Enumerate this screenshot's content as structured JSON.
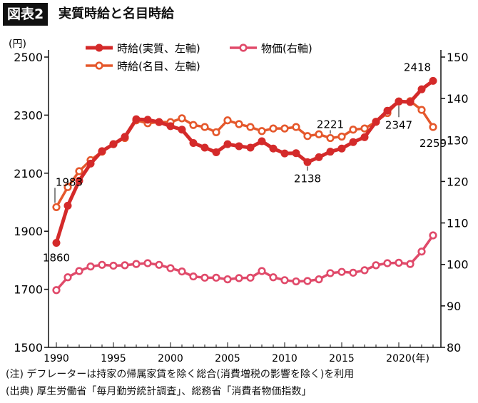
{
  "title": {
    "label": "図表2",
    "text": "実質時給と名目時給"
  },
  "chart_data": {
    "type": "line",
    "title": "実質時給と名目時給",
    "x": [
      1990,
      1991,
      1992,
      1993,
      1994,
      1995,
      1996,
      1997,
      1998,
      1999,
      2000,
      2001,
      2002,
      2003,
      2004,
      2005,
      2006,
      2007,
      2008,
      2009,
      2010,
      2011,
      2012,
      2013,
      2014,
      2015,
      2016,
      2017,
      2018,
      2019,
      2020,
      2021,
      2022,
      2023
    ],
    "x_ticks": [
      "1990",
      "1995",
      "2000",
      "2005",
      "2010",
      "2015",
      "2020"
    ],
    "x_unit": "(年)",
    "y_left": {
      "unit": "(円)",
      "range": [
        1500,
        2500
      ],
      "ticks": [
        "1500",
        "1700",
        "1900",
        "2100",
        "2300",
        "2500"
      ]
    },
    "y_right": {
      "range": [
        80,
        150
      ],
      "ticks": [
        "80",
        "90",
        "100",
        "110",
        "120",
        "130",
        "140",
        "150"
      ]
    },
    "grid": false,
    "legend_placement": "top",
    "series": [
      {
        "name": "時給(実質、左軸)",
        "axis": "left",
        "color": "#d42a2a",
        "marker": "filled",
        "values": [
          1860,
          1988,
          2074,
          2133,
          2176,
          2200,
          2225,
          2286,
          2284,
          2276,
          2262,
          2250,
          2204,
          2188,
          2172,
          2200,
          2193,
          2188,
          2210,
          2185,
          2168,
          2169,
          2138,
          2155,
          2174,
          2185,
          2207,
          2224,
          2277,
          2315,
          2347,
          2345,
          2389,
          2418
        ]
      },
      {
        "name": "時給(名目、左軸)",
        "axis": "left",
        "color": "#e5582c",
        "marker": "open",
        "values": [
          1983,
          2052,
          2107,
          2145,
          2174,
          2200,
          2221,
          2282,
          2272,
          2276,
          2276,
          2289,
          2266,
          2259,
          2241,
          2282,
          2269,
          2259,
          2245,
          2254,
          2254,
          2259,
          2228,
          2234,
          2221,
          2226,
          2250,
          2254,
          2277,
          2307,
          2347,
          2348,
          2318,
          2259
        ]
      },
      {
        "name": "物価(右軸)",
        "axis": "right",
        "color": "#e04a6a",
        "marker": "open",
        "values": [
          93.8,
          96.9,
          98.4,
          99.5,
          99.9,
          99.7,
          99.8,
          100.1,
          100.3,
          99.9,
          99.1,
          98.3,
          97.1,
          96.8,
          96.8,
          96.4,
          96.7,
          96.8,
          98.4,
          96.9,
          96.2,
          95.9,
          96.0,
          96.4,
          97.9,
          98.2,
          98.0,
          98.6,
          99.8,
          100.3,
          100.4,
          100.1,
          103.1,
          107.0
        ]
      }
    ],
    "annotations": [
      {
        "text": "1983",
        "series": 1,
        "x": 1990
      },
      {
        "text": "1860",
        "series": 0,
        "x": 1990
      },
      {
        "text": "2138",
        "series": 0,
        "x": 2012
      },
      {
        "text": "2221",
        "series": 1,
        "x": 2014
      },
      {
        "text": "2347",
        "series": 0,
        "x": 2020
      },
      {
        "text": "2418",
        "series": 0,
        "x": 2023
      },
      {
        "text": "2259",
        "series": 1,
        "x": 2023
      }
    ]
  },
  "notes": [
    "(注) デフレーターは持家の帰属家賃を除く総合(消費増税の影響を除く)を利用",
    "(出典) 厚生労働省「毎月勤労統計調査」、総務省「消費者物価指数」"
  ]
}
